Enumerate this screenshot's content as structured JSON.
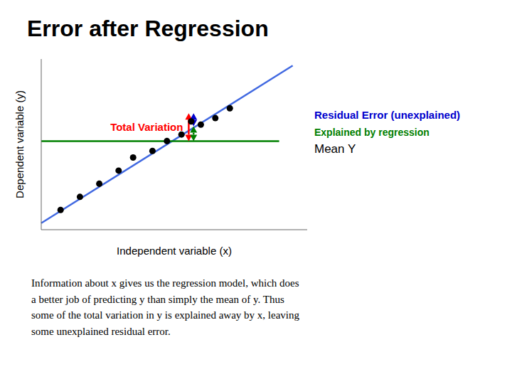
{
  "chart_data": {
    "type": "scatter",
    "title": "Error after Regression",
    "xlabel": "Independent variable (x)",
    "ylabel": "Dependent variable (y)",
    "x": [
      0.7,
      1.1,
      1.5,
      1.9,
      2.2,
      2.6,
      2.9,
      3.2,
      3.4,
      3.6,
      3.9,
      4.2
    ],
    "values": [
      0.9,
      1.3,
      1.7,
      2.1,
      2.5,
      2.7,
      3.0,
      3.2,
      3.6,
      3.5,
      3.7,
      4.0
    ],
    "color": "#000000",
    "xlim": [
      0.3,
      5.8
    ],
    "ylim": [
      0.3,
      5.5
    ],
    "tick_labels": false,
    "grid": false,
    "lines": [
      {
        "x": [
          0.3,
          5.5
        ],
        "values": [
          0.5,
          5.3
        ],
        "color": "#4169E1"
      },
      {
        "x": [
          0.3,
          5.22
        ],
        "values": [
          3.0,
          3.0
        ],
        "color": "#008000",
        "label": "Mean Y"
      }
    ],
    "arrows": [
      {
        "x": 3.35,
        "from": 3.0,
        "to": 3.85,
        "color": "#FF0000",
        "label": "Total Variation"
      },
      {
        "x": 3.45,
        "from": 3.45,
        "to": 3.85,
        "color": "#0000CD",
        "label": "Residual Error (unexplained)"
      },
      {
        "x": 3.45,
        "from": 3.0,
        "to": 3.45,
        "color": "#008000",
        "label": "Explained by regression"
      }
    ],
    "annotations": [
      "Information about x gives us the regression model, which does\na better job of predicting y than simply the mean of y. Thus\nsome of the total variation in y is explained away by x, leaving\nsome unexplained residual error."
    ]
  }
}
